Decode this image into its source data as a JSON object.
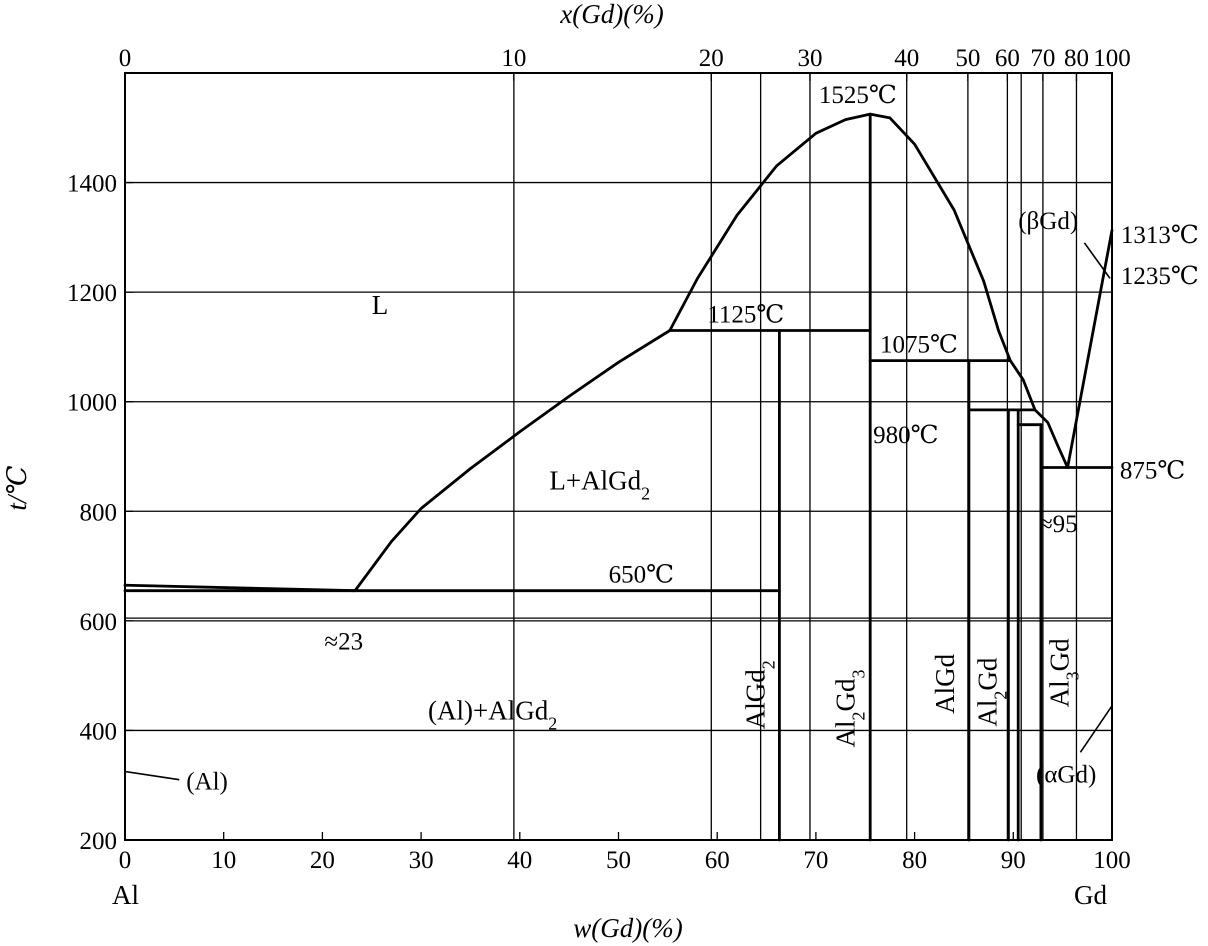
{
  "chart_data": {
    "type": "phase-diagram",
    "title": "",
    "xlabel": "w(Gd)(%)",
    "x2label": "x(Gd)(%)",
    "ylabel": "t/℃",
    "xlim": [
      0,
      100
    ],
    "ylim": [
      200,
      1600
    ],
    "grid": true,
    "x_ticks": [
      0,
      10,
      20,
      30,
      40,
      50,
      60,
      70,
      80,
      90,
      100
    ],
    "x_tick_labels": [
      "0",
      "10",
      "20",
      "30",
      "40",
      "50",
      "60",
      "70",
      "80",
      "90",
      "100"
    ],
    "y_ticks": [
      200,
      400,
      600,
      800,
      1000,
      1200,
      1400
    ],
    "y_tick_labels": [
      "200",
      "400",
      "600",
      "800",
      "1000",
      "1200",
      "1400"
    ],
    "top_ticks": [
      {
        "w": 0,
        "label": "0"
      },
      {
        "w": 39.4,
        "label": "10"
      },
      {
        "w": 59.4,
        "label": "20"
      },
      {
        "w": 69.4,
        "label": "30"
      },
      {
        "w": 79.2,
        "label": "40"
      },
      {
        "w": 85.4,
        "label": "50"
      },
      {
        "w": 89.4,
        "label": "60"
      },
      {
        "w": 93.0,
        "label": "70"
      },
      {
        "w": 96.4,
        "label": "80"
      },
      {
        "w": 100,
        "label": "100"
      }
    ],
    "top_extra_gridlines": [
      64.4,
      90.8
    ],
    "corner_labels": {
      "left": "Al",
      "right": "Gd"
    },
    "series": [
      {
        "name": "liquidus-left",
        "points": [
          [
            0,
            665
          ],
          [
            23.3,
            655
          ],
          [
            27,
            745
          ],
          [
            30,
            805
          ],
          [
            35,
            878
          ],
          [
            40,
            945
          ],
          [
            45,
            1010
          ],
          [
            50,
            1072
          ],
          [
            55.2,
            1130
          ]
        ]
      },
      {
        "name": "liquidus-dome",
        "points": [
          [
            55.2,
            1130
          ],
          [
            58,
            1225
          ],
          [
            62,
            1340
          ],
          [
            66,
            1430
          ],
          [
            70,
            1490
          ],
          [
            73,
            1515
          ],
          [
            75.5,
            1525
          ],
          [
            77.5,
            1518
          ],
          [
            80,
            1470
          ],
          [
            84,
            1350
          ],
          [
            87,
            1220
          ],
          [
            88.5,
            1130
          ],
          [
            89.7,
            1075
          ]
        ]
      },
      {
        "name": "liquidus-right",
        "points": [
          [
            89.7,
            1075
          ],
          [
            91,
            1040
          ],
          [
            92.2,
            985
          ],
          [
            93.5,
            962
          ],
          [
            94.5,
            920
          ],
          [
            95.5,
            880
          ]
        ]
      },
      {
        "name": "beta-liquidus",
        "points": [
          [
            95.5,
            880
          ],
          [
            100,
            1313
          ]
        ]
      },
      {
        "name": "eutectic-650",
        "points": [
          [
            0,
            655
          ],
          [
            66.3,
            655
          ]
        ]
      },
      {
        "name": "solvus-al",
        "points": [
          [
            0,
            605
          ],
          [
            100,
            605
          ]
        ],
        "style": "thin"
      },
      {
        "name": "peritectic-1125",
        "points": [
          [
            55.2,
            1130
          ],
          [
            75.5,
            1130
          ]
        ]
      },
      {
        "name": "peritectic-1075",
        "points": [
          [
            75.5,
            1075
          ],
          [
            89.7,
            1075
          ]
        ]
      },
      {
        "name": "peritectic-980",
        "points": [
          [
            85.5,
            985
          ],
          [
            92.2,
            985
          ]
        ]
      },
      {
        "name": "line-960",
        "points": [
          [
            90.5,
            958
          ],
          [
            92.8,
            958
          ]
        ]
      },
      {
        "name": "eutectic-875",
        "points": [
          [
            92.8,
            880
          ],
          [
            100,
            880
          ]
        ]
      },
      {
        "name": "AlGd2-line",
        "points": [
          [
            66.3,
            1130
          ],
          [
            66.3,
            200
          ]
        ]
      },
      {
        "name": "Al2Gd3-line",
        "points": [
          [
            75.5,
            1525
          ],
          [
            75.5,
            200
          ]
        ]
      },
      {
        "name": "AlGd-line",
        "points": [
          [
            85.5,
            1075
          ],
          [
            85.5,
            200
          ]
        ]
      },
      {
        "name": "Al2Gd-line",
        "points": [
          [
            90.5,
            985
          ],
          [
            90.5,
            200
          ]
        ]
      },
      {
        "name": "Al2Gd-line-b",
        "points": [
          [
            89.5,
            985
          ],
          [
            89.5,
            200
          ]
        ]
      },
      {
        "name": "Al3Gd-line",
        "points": [
          [
            92.8,
            958
          ],
          [
            92.8,
            200
          ]
        ]
      }
    ],
    "leaders": [
      {
        "name": "al-leader",
        "points": [
          [
            0,
            325
          ],
          [
            5.5,
            310
          ]
        ]
      },
      {
        "name": "alpha-gd-leader",
        "points": [
          [
            96.8,
            360
          ],
          [
            100,
            445
          ]
        ]
      },
      {
        "name": "beta-gd-leader",
        "points": [
          [
            97.2,
            1290
          ],
          [
            99.8,
            1225
          ]
        ]
      }
    ],
    "annotations": [
      {
        "id": "L",
        "text": "L",
        "x": 25,
        "y": 1160,
        "size": 27
      },
      {
        "id": "L+AlGd2",
        "text": "L+AlGd",
        "sub": "2",
        "x": 43,
        "y": 840,
        "size": 27
      },
      {
        "id": "Al+AlGd2",
        "text": "(Al)+AlGd",
        "sub": "2",
        "x": 30.7,
        "y": 420,
        "size": 27
      },
      {
        "id": "t1525",
        "text": "1525℃",
        "x": 70.3,
        "y": 1545,
        "size": 25
      },
      {
        "id": "t1125",
        "text": "1125℃",
        "x": 59,
        "y": 1145,
        "size": 25
      },
      {
        "id": "t1075",
        "text": "1075℃",
        "x": 76.5,
        "y": 1090,
        "size": 25
      },
      {
        "id": "t980",
        "text": "980℃",
        "x": 75.8,
        "y": 925,
        "size": 25
      },
      {
        "id": "t650",
        "text": "650℃",
        "x": 49,
        "y": 670,
        "size": 25
      },
      {
        "id": "t875",
        "text": "875℃",
        "x": 100.8,
        "y": 860,
        "size": 25
      },
      {
        "id": "t1313",
        "text": "1313℃",
        "x": 100.9,
        "y": 1290,
        "size": 25
      },
      {
        "id": "t1235",
        "text": "1235℃",
        "x": 100.9,
        "y": 1215,
        "size": 25
      },
      {
        "id": "c23",
        "text": "≈23",
        "x": 20.2,
        "y": 548,
        "size": 25
      },
      {
        "id": "c95",
        "text": "≈95",
        "x": 92.6,
        "y": 762,
        "size": 25
      },
      {
        "id": "beta-gd",
        "text": "(βGd)",
        "x": 90.5,
        "y": 1315,
        "size": 25
      },
      {
        "id": "alpha-gd",
        "text": "(αGd)",
        "x": 92.3,
        "y": 305,
        "size": 25
      },
      {
        "id": "al",
        "text": "(Al)",
        "x": 6.2,
        "y": 292,
        "size": 25
      }
    ],
    "vertical_labels": [
      {
        "id": "AlGd2",
        "text": "AlGd",
        "sub": "2",
        "x": 64.8,
        "y": 465
      },
      {
        "id": "Al2Gd3",
        "text": "Al",
        "sub": "2",
        "text2": "Gd",
        "sub2": "3",
        "x": 73.9,
        "y": 440
      },
      {
        "id": "AlGd",
        "text": "AlGd",
        "x": 84.0,
        "y": 485
      },
      {
        "id": "Al2Gd",
        "text": "Al",
        "sub": "2",
        "text2": "Gd",
        "x": 88.3,
        "y": 470
      },
      {
        "id": "Al3Gd",
        "text": "Al",
        "sub": "3",
        "text2": "Gd",
        "x": 95.6,
        "y": 505
      }
    ]
  }
}
